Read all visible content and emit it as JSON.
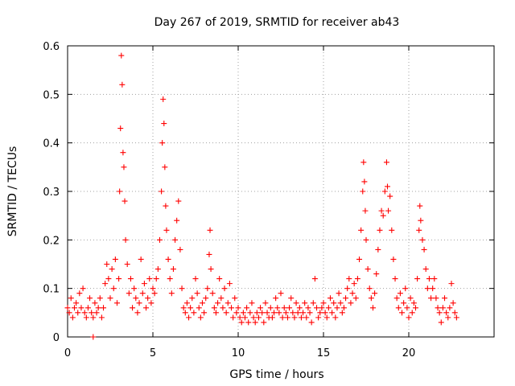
{
  "chart_data": {
    "type": "scatter",
    "title": "Day 267 of 2019, SRMTID for receiver ab43",
    "xlabel": "GPS time / hours",
    "ylabel": "SRMTID / TECUs",
    "xlim": [
      0,
      25
    ],
    "ylim": [
      0,
      0.6
    ],
    "x_ticks": [
      0,
      5,
      10,
      15,
      20
    ],
    "x_tick_labels": [
      "0",
      "5",
      "10",
      "15",
      "20"
    ],
    "y_ticks": [
      0,
      0.1,
      0.2,
      0.3,
      0.4,
      0.5,
      0.6
    ],
    "y_tick_labels": [
      "0",
      "0.1",
      "0.2",
      "0.3",
      "0.4",
      "0.5",
      "0.6"
    ],
    "grid": true,
    "series": [
      {
        "name": "SRMTID",
        "marker": "plus",
        "color": "#ff0000",
        "points": [
          [
            0.0,
            0.06
          ],
          [
            0.1,
            0.05
          ],
          [
            0.2,
            0.08
          ],
          [
            0.3,
            0.04
          ],
          [
            0.4,
            0.06
          ],
          [
            0.5,
            0.07
          ],
          [
            0.6,
            0.05
          ],
          [
            0.7,
            0.09
          ],
          [
            0.8,
            0.06
          ],
          [
            0.9,
            0.1
          ],
          [
            1.0,
            0.05
          ],
          [
            1.1,
            0.04
          ],
          [
            1.2,
            0.06
          ],
          [
            1.3,
            0.08
          ],
          [
            1.4,
            0.05
          ],
          [
            1.5,
            0.04
          ],
          [
            1.6,
            0.07
          ],
          [
            1.7,
            0.05
          ],
          [
            1.8,
            0.06
          ],
          [
            1.9,
            0.08
          ],
          [
            2.0,
            0.04
          ],
          [
            2.1,
            0.06
          ],
          [
            2.2,
            0.11
          ],
          [
            2.3,
            0.15
          ],
          [
            2.4,
            0.12
          ],
          [
            2.5,
            0.08
          ],
          [
            2.6,
            0.14
          ],
          [
            2.7,
            0.1
          ],
          [
            2.8,
            0.16
          ],
          [
            2.9,
            0.07
          ],
          [
            3.0,
            0.12
          ],
          [
            3.05,
            0.3
          ],
          [
            3.1,
            0.43
          ],
          [
            3.15,
            0.58
          ],
          [
            3.2,
            0.52
          ],
          [
            3.25,
            0.38
          ],
          [
            3.3,
            0.35
          ],
          [
            3.35,
            0.28
          ],
          [
            3.4,
            0.2
          ],
          [
            3.5,
            0.15
          ],
          [
            3.6,
            0.09
          ],
          [
            3.7,
            0.12
          ],
          [
            3.8,
            0.06
          ],
          [
            3.9,
            0.1
          ],
          [
            4.0,
            0.08
          ],
          [
            4.1,
            0.05
          ],
          [
            4.2,
            0.07
          ],
          [
            4.3,
            0.16
          ],
          [
            4.4,
            0.09
          ],
          [
            4.5,
            0.11
          ],
          [
            4.6,
            0.06
          ],
          [
            4.7,
            0.08
          ],
          [
            4.8,
            0.12
          ],
          [
            4.9,
            0.07
          ],
          [
            5.0,
            0.1
          ],
          [
            5.1,
            0.09
          ],
          [
            5.2,
            0.12
          ],
          [
            5.3,
            0.14
          ],
          [
            5.4,
            0.2
          ],
          [
            5.5,
            0.3
          ],
          [
            5.55,
            0.4
          ],
          [
            5.6,
            0.49
          ],
          [
            5.65,
            0.44
          ],
          [
            5.7,
            0.35
          ],
          [
            5.75,
            0.27
          ],
          [
            5.8,
            0.22
          ],
          [
            5.9,
            0.16
          ],
          [
            6.0,
            0.12
          ],
          [
            6.1,
            0.09
          ],
          [
            6.2,
            0.14
          ],
          [
            6.3,
            0.2
          ],
          [
            6.4,
            0.24
          ],
          [
            6.5,
            0.28
          ],
          [
            6.6,
            0.18
          ],
          [
            6.7,
            0.1
          ],
          [
            6.8,
            0.06
          ],
          [
            6.9,
            0.05
          ],
          [
            7.0,
            0.07
          ],
          [
            7.1,
            0.04
          ],
          [
            7.2,
            0.06
          ],
          [
            7.3,
            0.08
          ],
          [
            7.4,
            0.05
          ],
          [
            7.5,
            0.12
          ],
          [
            7.6,
            0.09
          ],
          [
            7.7,
            0.06
          ],
          [
            7.8,
            0.04
          ],
          [
            7.9,
            0.07
          ],
          [
            8.0,
            0.05
          ],
          [
            8.1,
            0.08
          ],
          [
            8.2,
            0.1
          ],
          [
            8.3,
            0.17
          ],
          [
            8.35,
            0.22
          ],
          [
            8.4,
            0.14
          ],
          [
            8.5,
            0.09
          ],
          [
            8.6,
            0.06
          ],
          [
            8.7,
            0.05
          ],
          [
            8.8,
            0.07
          ],
          [
            8.9,
            0.12
          ],
          [
            9.0,
            0.08
          ],
          [
            9.1,
            0.06
          ],
          [
            9.2,
            0.1
          ],
          [
            9.3,
            0.05
          ],
          [
            9.4,
            0.07
          ],
          [
            9.5,
            0.11
          ],
          [
            9.6,
            0.06
          ],
          [
            9.7,
            0.04
          ],
          [
            9.8,
            0.08
          ],
          [
            9.9,
            0.05
          ],
          [
            10.0,
            0.06
          ],
          [
            10.1,
            0.04
          ],
          [
            10.2,
            0.03
          ],
          [
            10.3,
            0.05
          ],
          [
            10.4,
            0.04
          ],
          [
            10.5,
            0.06
          ],
          [
            10.6,
            0.03
          ],
          [
            10.7,
            0.05
          ],
          [
            10.8,
            0.07
          ],
          [
            10.9,
            0.04
          ],
          [
            11.0,
            0.03
          ],
          [
            11.1,
            0.05
          ],
          [
            11.2,
            0.04
          ],
          [
            11.3,
            0.06
          ],
          [
            11.4,
            0.05
          ],
          [
            11.5,
            0.03
          ],
          [
            11.6,
            0.07
          ],
          [
            11.7,
            0.05
          ],
          [
            11.8,
            0.04
          ],
          [
            11.9,
            0.06
          ],
          [
            12.0,
            0.04
          ],
          [
            12.1,
            0.05
          ],
          [
            12.2,
            0.08
          ],
          [
            12.3,
            0.06
          ],
          [
            12.4,
            0.05
          ],
          [
            12.5,
            0.09
          ],
          [
            12.6,
            0.04
          ],
          [
            12.7,
            0.06
          ],
          [
            12.8,
            0.05
          ],
          [
            12.9,
            0.04
          ],
          [
            13.0,
            0.06
          ],
          [
            13.1,
            0.08
          ],
          [
            13.2,
            0.05
          ],
          [
            13.3,
            0.04
          ],
          [
            13.4,
            0.07
          ],
          [
            13.5,
            0.05
          ],
          [
            13.6,
            0.06
          ],
          [
            13.7,
            0.04
          ],
          [
            13.8,
            0.05
          ],
          [
            13.9,
            0.07
          ],
          [
            14.0,
            0.04
          ],
          [
            14.1,
            0.06
          ],
          [
            14.2,
            0.05
          ],
          [
            14.3,
            0.03
          ],
          [
            14.4,
            0.07
          ],
          [
            14.5,
            0.12
          ],
          [
            14.6,
            0.06
          ],
          [
            14.7,
            0.04
          ],
          [
            14.8,
            0.05
          ],
          [
            14.9,
            0.06
          ],
          [
            15.0,
            0.07
          ],
          [
            15.1,
            0.05
          ],
          [
            15.2,
            0.04
          ],
          [
            15.3,
            0.06
          ],
          [
            15.4,
            0.08
          ],
          [
            15.5,
            0.05
          ],
          [
            15.6,
            0.07
          ],
          [
            15.7,
            0.04
          ],
          [
            15.8,
            0.06
          ],
          [
            15.9,
            0.09
          ],
          [
            16.0,
            0.07
          ],
          [
            16.1,
            0.05
          ],
          [
            16.2,
            0.06
          ],
          [
            16.3,
            0.08
          ],
          [
            16.4,
            0.1
          ],
          [
            16.5,
            0.12
          ],
          [
            16.6,
            0.07
          ],
          [
            16.7,
            0.09
          ],
          [
            16.8,
            0.11
          ],
          [
            16.9,
            0.08
          ],
          [
            17.0,
            0.12
          ],
          [
            17.1,
            0.16
          ],
          [
            17.2,
            0.22
          ],
          [
            17.3,
            0.3
          ],
          [
            17.35,
            0.36
          ],
          [
            17.4,
            0.32
          ],
          [
            17.45,
            0.26
          ],
          [
            17.5,
            0.2
          ],
          [
            17.6,
            0.14
          ],
          [
            17.7,
            0.1
          ],
          [
            17.8,
            0.08
          ],
          [
            17.9,
            0.06
          ],
          [
            18.0,
            0.09
          ],
          [
            18.1,
            0.13
          ],
          [
            18.2,
            0.18
          ],
          [
            18.3,
            0.22
          ],
          [
            18.4,
            0.26
          ],
          [
            18.5,
            0.25
          ],
          [
            18.6,
            0.3
          ],
          [
            18.7,
            0.36
          ],
          [
            18.75,
            0.31
          ],
          [
            18.8,
            0.26
          ],
          [
            18.9,
            0.29
          ],
          [
            19.0,
            0.22
          ],
          [
            19.1,
            0.16
          ],
          [
            19.2,
            0.12
          ],
          [
            19.3,
            0.08
          ],
          [
            19.4,
            0.06
          ],
          [
            19.5,
            0.09
          ],
          [
            19.6,
            0.05
          ],
          [
            19.7,
            0.07
          ],
          [
            19.8,
            0.1
          ],
          [
            19.9,
            0.06
          ],
          [
            20.0,
            0.04
          ],
          [
            20.1,
            0.08
          ],
          [
            20.2,
            0.05
          ],
          [
            20.3,
            0.07
          ],
          [
            20.4,
            0.06
          ],
          [
            20.5,
            0.12
          ],
          [
            20.6,
            0.22
          ],
          [
            20.65,
            0.27
          ],
          [
            20.7,
            0.24
          ],
          [
            20.8,
            0.2
          ],
          [
            20.9,
            0.18
          ],
          [
            21.0,
            0.14
          ],
          [
            21.1,
            0.1
          ],
          [
            21.2,
            0.12
          ],
          [
            21.3,
            0.08
          ],
          [
            21.4,
            0.1
          ],
          [
            21.5,
            0.12
          ],
          [
            21.6,
            0.08
          ],
          [
            21.7,
            0.06
          ],
          [
            21.8,
            0.05
          ],
          [
            21.9,
            0.03
          ],
          [
            22.0,
            0.06
          ],
          [
            22.1,
            0.08
          ],
          [
            22.2,
            0.05
          ],
          [
            22.3,
            0.04
          ],
          [
            22.4,
            0.06
          ],
          [
            22.5,
            0.11
          ],
          [
            22.6,
            0.07
          ],
          [
            22.7,
            0.05
          ],
          [
            22.8,
            0.04
          ],
          [
            1.5,
            0.0
          ]
        ]
      }
    ]
  }
}
